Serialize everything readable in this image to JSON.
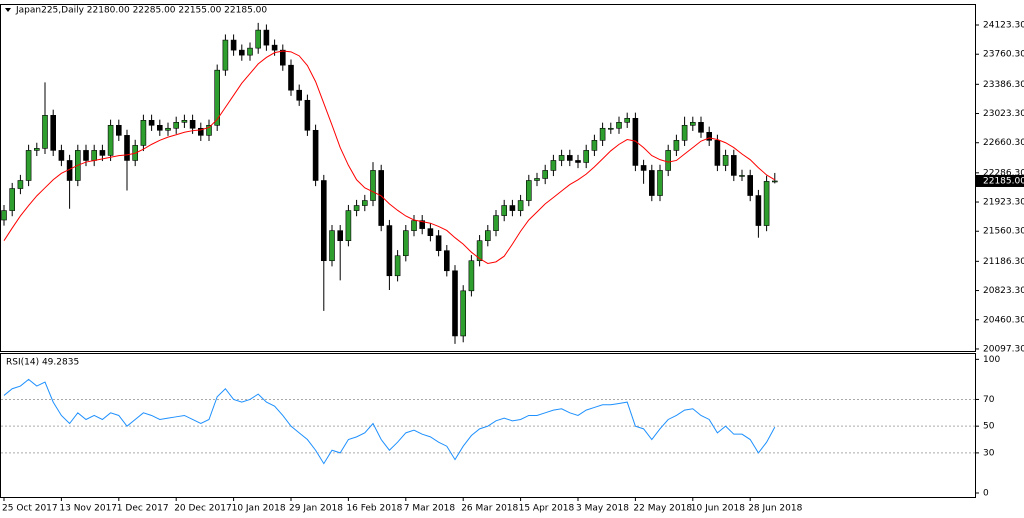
{
  "chart_data": [
    {
      "type": "candlestick",
      "title": "Japan225,Daily  22180.00 22285.00 22155.00 22185.00",
      "ohlc": {
        "open": [
          21700,
          21817,
          22091,
          22191,
          22565,
          22590,
          23001,
          22565,
          22440,
          22191,
          22565,
          22440,
          22565,
          22503,
          22877,
          22752,
          22440,
          22627,
          22939,
          22877,
          22815,
          22840,
          22914,
          22939,
          22840,
          22752,
          22877,
          23562,
          23936,
          23811,
          23749,
          23836,
          24060,
          23873,
          23811,
          23624,
          23313,
          23188,
          22815,
          22191,
          21194,
          21568,
          21443,
          21817,
          21880,
          21942,
          22316,
          21631,
          21007,
          21256,
          21568,
          21692,
          21593,
          21505,
          21319,
          21069,
          20259,
          20820,
          21194,
          21443,
          21568,
          21755,
          21880,
          21817,
          21942,
          22191,
          22216,
          22316,
          22440,
          22503,
          22440,
          22415,
          22565,
          22690,
          22840,
          22840,
          22914,
          22964,
          22378,
          22316,
          22004,
          22316,
          22565,
          22690,
          22877,
          22914,
          22790,
          22690,
          22378,
          22503,
          22254,
          22254,
          22004,
          21631,
          22180
        ],
        "high": [
          21887,
          22161,
          22261,
          22635,
          22660,
          23410,
          23071,
          22635,
          22510,
          22635,
          22635,
          22635,
          22635,
          22947,
          22947,
          22822,
          22697,
          23009,
          23009,
          22947,
          22910,
          22984,
          23009,
          23009,
          22910,
          22947,
          23632,
          24006,
          24006,
          23881,
          23906,
          24150,
          24130,
          23943,
          23881,
          23694,
          23383,
          23258,
          22885,
          22261,
          21638,
          21638,
          21887,
          21950,
          22012,
          22420,
          22386,
          21701,
          21326,
          21638,
          21762,
          21762,
          21663,
          21575,
          21389,
          21139,
          20890,
          21264,
          21513,
          21638,
          21825,
          21950,
          21950,
          22012,
          22261,
          22286,
          22386,
          22510,
          22573,
          22573,
          22510,
          22635,
          22760,
          22910,
          22910,
          22984,
          23034,
          23034,
          22448,
          22386,
          22386,
          22635,
          22760,
          22984,
          22984,
          22984,
          22860,
          22760,
          22573,
          22573,
          22324,
          22324,
          22074,
          22250,
          22285
        ],
        "low": [
          21630,
          21747,
          22021,
          22121,
          22495,
          22520,
          22495,
          22370,
          21840,
          22121,
          22370,
          22370,
          22433,
          22433,
          22682,
          22066,
          22370,
          22557,
          22807,
          22745,
          22745,
          22770,
          22844,
          22770,
          22682,
          22682,
          22807,
          23492,
          23741,
          23679,
          23679,
          23766,
          23803,
          23741,
          23554,
          23243,
          23118,
          22745,
          22121,
          20570,
          21124,
          20950,
          21373,
          21747,
          21810,
          21872,
          21561,
          20830,
          20937,
          21186,
          21498,
          21523,
          21435,
          21249,
          20999,
          20160,
          20180,
          20750,
          21124,
          21373,
          21498,
          21685,
          21747,
          21747,
          21872,
          22121,
          22146,
          22246,
          22370,
          22370,
          22345,
          22345,
          22495,
          22620,
          22770,
          22770,
          22844,
          22308,
          22150,
          21934,
          21934,
          22246,
          22495,
          22620,
          22807,
          22720,
          22620,
          22308,
          22308,
          22184,
          22184,
          21934,
          21480,
          21561,
          22155
        ],
        "close": [
          21817,
          22091,
          22191,
          22565,
          22590,
          23001,
          22565,
          22440,
          22191,
          22565,
          22440,
          22565,
          22503,
          22877,
          22752,
          22440,
          22627,
          22939,
          22877,
          22815,
          22840,
          22914,
          22939,
          22840,
          22752,
          22877,
          23562,
          23936,
          23811,
          23749,
          23836,
          24060,
          23873,
          23811,
          23624,
          23313,
          23188,
          22815,
          22191,
          21194,
          21568,
          21443,
          21817,
          21880,
          21942,
          22316,
          21631,
          21007,
          21256,
          21568,
          21692,
          21593,
          21505,
          21319,
          21069,
          20259,
          20820,
          21194,
          21443,
          21568,
          21755,
          21880,
          21817,
          21942,
          22191,
          22216,
          22316,
          22440,
          22503,
          22440,
          22415,
          22565,
          22690,
          22840,
          22840,
          22914,
          22964,
          22378,
          22316,
          22004,
          22316,
          22565,
          22690,
          22877,
          22914,
          22790,
          22690,
          22378,
          22503,
          22254,
          22254,
          22004,
          21631,
          22180,
          22185
        ],
        "up_color": "#2e9e2e",
        "down_color": "#000000"
      },
      "ma": {
        "color": "#ff0000",
        "values": [
          21443,
          21600,
          21750,
          21880,
          22000,
          22100,
          22200,
          22280,
          22330,
          22380,
          22420,
          22440,
          22460,
          22480,
          22500,
          22510,
          22530,
          22580,
          22640,
          22690,
          22730,
          22760,
          22790,
          22810,
          22820,
          22850,
          22950,
          23100,
          23250,
          23400,
          23520,
          23640,
          23720,
          23780,
          23800,
          23790,
          23740,
          23620,
          23420,
          23150,
          22880,
          22600,
          22380,
          22200,
          22100,
          22050,
          22000,
          21900,
          21820,
          21750,
          21700,
          21680,
          21660,
          21620,
          21570,
          21480,
          21400,
          21300,
          21220,
          21160,
          21180,
          21250,
          21400,
          21560,
          21700,
          21800,
          21900,
          21980,
          22060,
          22140,
          22200,
          22270,
          22360,
          22460,
          22560,
          22640,
          22700,
          22680,
          22600,
          22500,
          22450,
          22420,
          22440,
          22520,
          22600,
          22680,
          22720,
          22700,
          22660,
          22600,
          22520,
          22450,
          22350,
          22260,
          22200
        ]
      },
      "ylim": [
        20072,
        24372
      ],
      "yticks": [
        {
          "value": 24123.3,
          "label": "24123.30"
        },
        {
          "value": 23760.3,
          "label": "23760.30"
        },
        {
          "value": 23386.3,
          "label": "23386.30"
        },
        {
          "value": 23023.3,
          "label": "23023.30"
        },
        {
          "value": 22660.3,
          "label": "22660.30"
        },
        {
          "value": 22286.3,
          "label": "22286.30"
        },
        {
          "value": 21923.3,
          "label": "21923.30"
        },
        {
          "value": 21560.3,
          "label": "21560.30"
        },
        {
          "value": 21186.3,
          "label": "21186.30"
        },
        {
          "value": 20823.3,
          "label": "20823.30"
        },
        {
          "value": 20460.3,
          "label": "20460.30"
        },
        {
          "value": 20097.3,
          "label": "20097.30"
        }
      ],
      "last_price": {
        "value": 22185,
        "label": "22185.00"
      }
    },
    {
      "type": "line",
      "title": "RSI(14) 49.2835",
      "color": "#1e90ff",
      "categories": [
        "25 Oct 2017",
        null,
        null,
        null,
        null,
        null,
        null,
        "13 Nov 2017",
        null,
        null,
        null,
        null,
        null,
        null,
        "1 Dec 2017",
        null,
        null,
        null,
        null,
        null,
        null,
        "20 Dec 2017",
        null,
        null,
        null,
        null,
        null,
        null,
        "10 Jan 2018",
        null,
        null,
        null,
        null,
        null,
        null,
        "29 Jan 2018",
        null,
        null,
        null,
        null,
        null,
        null,
        "16 Feb 2018",
        null,
        null,
        null,
        null,
        null,
        null,
        "7 Mar 2018",
        null,
        null,
        null,
        null,
        null,
        null,
        "26 Mar 2018",
        null,
        null,
        null,
        null,
        null,
        null,
        "15 Apr 2018",
        null,
        null,
        null,
        null,
        null,
        null,
        "3 May 2018",
        null,
        null,
        null,
        null,
        null,
        null,
        "22 May 2018",
        null,
        null,
        null,
        null,
        null,
        null,
        "10 Jun 2018",
        null,
        null,
        null,
        null,
        null,
        null,
        "28 Jun 2018",
        null,
        null,
        null
      ],
      "values": [
        73,
        78,
        80,
        85,
        80,
        83,
        68,
        58,
        52,
        60,
        55,
        58,
        55,
        60,
        58,
        50,
        55,
        60,
        58,
        55,
        56,
        57,
        58,
        55,
        52,
        55,
        72,
        78,
        70,
        68,
        70,
        74,
        68,
        65,
        58,
        50,
        45,
        40,
        32,
        22,
        32,
        30,
        40,
        42,
        45,
        52,
        40,
        32,
        38,
        45,
        47,
        44,
        42,
        38,
        35,
        25,
        35,
        43,
        48,
        50,
        54,
        56,
        54,
        55,
        58,
        58,
        60,
        62,
        63,
        60,
        58,
        62,
        64,
        66,
        66,
        67,
        68,
        50,
        48,
        40,
        48,
        55,
        58,
        62,
        63,
        58,
        55,
        45,
        50,
        44,
        44,
        40,
        30,
        38,
        49.2835
      ],
      "ylim": [
        -3,
        104
      ],
      "yticks": [
        0,
        30,
        50,
        70,
        100
      ],
      "levels": [
        30,
        50,
        70
      ]
    }
  ]
}
